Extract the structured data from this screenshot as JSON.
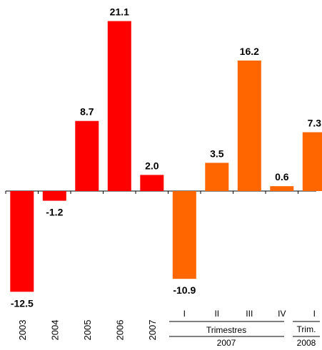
{
  "chart_data": {
    "type": "bar",
    "categories": [
      "2003",
      "2004",
      "2005",
      "2006",
      "2007",
      "I",
      "II",
      "III",
      "IV",
      "I"
    ],
    "values": [
      -12.5,
      -1.2,
      8.7,
      21.1,
      2.0,
      -10.9,
      3.5,
      16.2,
      0.6,
      7.3
    ],
    "value_labels": [
      "-12.5",
      "-1.2",
      "8.7",
      "21.1",
      "2.0",
      "-10.9",
      "3.5",
      "16.2",
      "0.6",
      "7.3"
    ],
    "bar_colors": [
      "#ff0000",
      "#ff0000",
      "#ff0000",
      "#ff0000",
      "#ff0000",
      "#ff6600",
      "#ff6600",
      "#ff6600",
      "#ff6600",
      "#ff6600"
    ],
    "ylim": [
      -13.5,
      22.5
    ],
    "grid": false,
    "legend": "none",
    "group_labels": {
      "trimestres": "Trimestres",
      "year_2007": "2007",
      "trim": "Trim.",
      "year_2008": "2008"
    }
  }
}
